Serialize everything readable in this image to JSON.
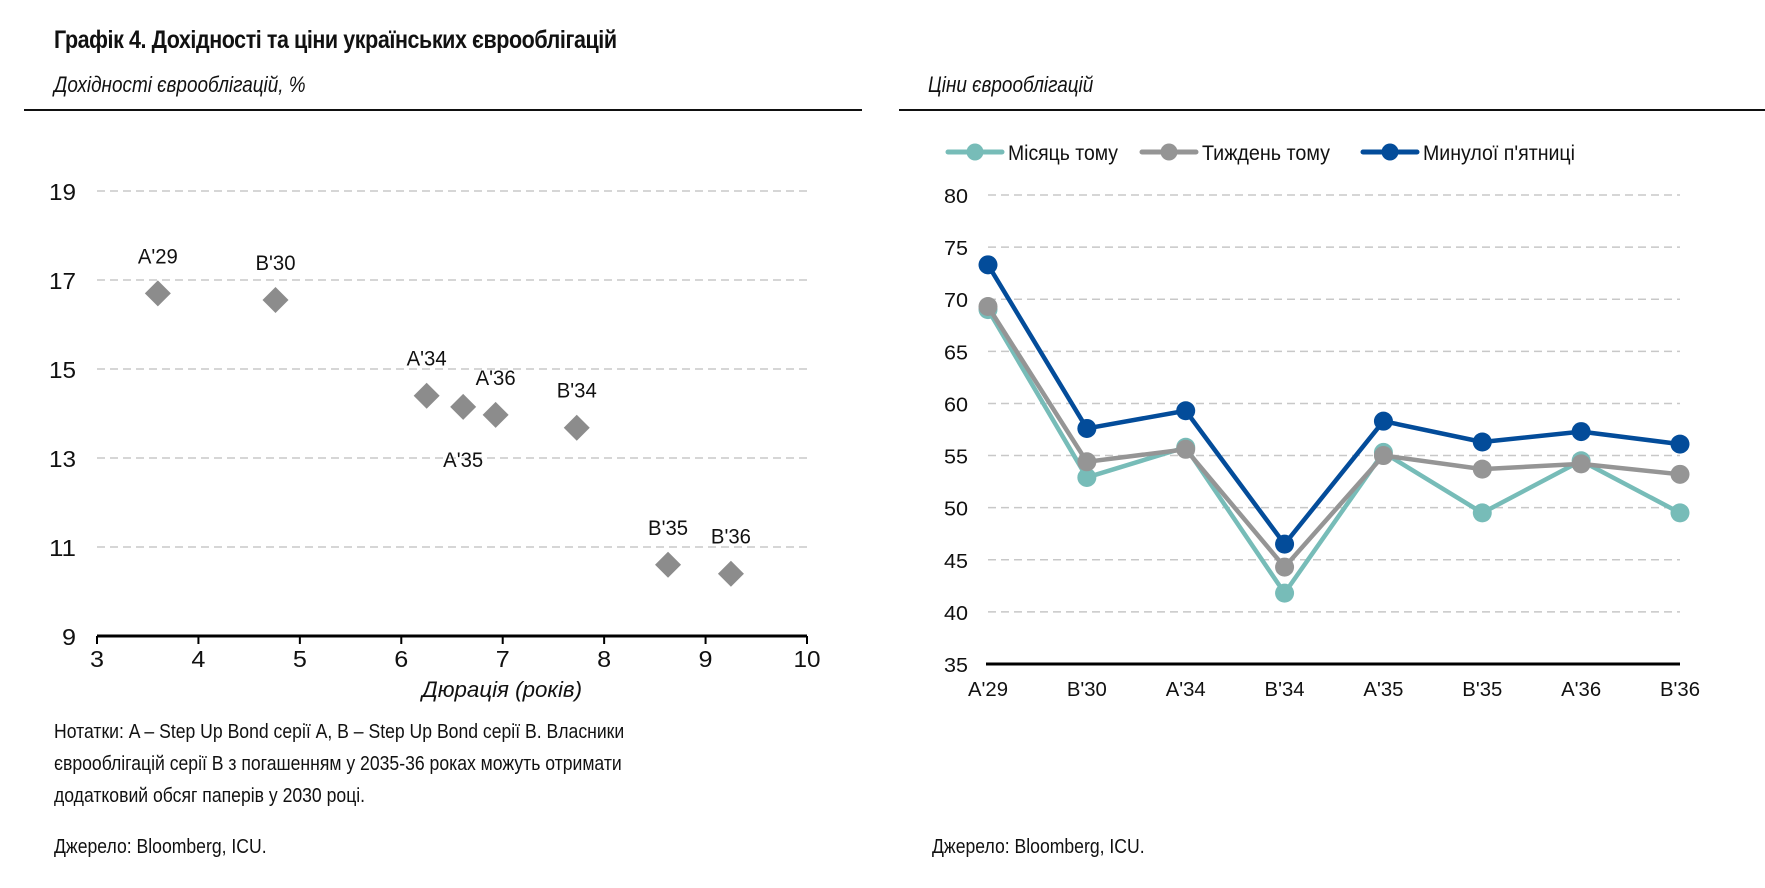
{
  "page": {
    "title": "Графік 4. Дохідності та ціни українських єврооблігацій",
    "left_subtitle": "Дохідності єврооблігацій, %",
    "right_subtitle": "Ціни єврооблігацій",
    "notes_lines": [
      "Нотатки: A – Step Up Bond серії A, B – Step Up Bond серії B. Власники",
      "єврооблігацій серії B з погашенням у 2035-36 роках можуть отримати",
      "додатковий обсяг паперів у 2030 році."
    ],
    "left_source": "Джерело: Bloomberg, ICU.",
    "right_source": "Джерело: Bloomberg, ICU."
  },
  "chart_data": [
    {
      "type": "scatter",
      "title": "Дохідності єврооблігацій, %",
      "xlabel": "Дюрація (років)",
      "ylabel": "",
      "xlim": [
        3,
        10
      ],
      "ylim": [
        9,
        19
      ],
      "xticks": [
        3,
        4,
        5,
        6,
        7,
        8,
        9,
        10
      ],
      "yticks": [
        9,
        11,
        13,
        15,
        17,
        19
      ],
      "grid": "horizontal-dashed",
      "marker": "diamond",
      "marker_color": "#8c8c8c",
      "points": [
        {
          "label": "A'29",
          "x": 3.6,
          "y": 16.7,
          "label_pos": "above"
        },
        {
          "label": "B'30",
          "x": 4.76,
          "y": 16.55,
          "label_pos": "above"
        },
        {
          "label": "A'34",
          "x": 6.25,
          "y": 14.4,
          "label_pos": "above"
        },
        {
          "label": "A'35",
          "x": 6.61,
          "y": 14.15,
          "label_pos": "below"
        },
        {
          "label": "A'36",
          "x": 6.93,
          "y": 13.97,
          "label_pos": "above"
        },
        {
          "label": "B'34",
          "x": 7.73,
          "y": 13.68,
          "label_pos": "above"
        },
        {
          "label": "B'35",
          "x": 8.63,
          "y": 10.6,
          "label_pos": "above"
        },
        {
          "label": "B'36",
          "x": 9.25,
          "y": 10.4,
          "label_pos": "above"
        }
      ]
    },
    {
      "type": "line",
      "title": "Ціни єврооблігацій",
      "xlabel": "",
      "ylabel": "",
      "ylim": [
        35,
        80
      ],
      "yticks": [
        35,
        40,
        45,
        50,
        55,
        60,
        65,
        70,
        75,
        80
      ],
      "grid": "horizontal-dashed",
      "legend": "top",
      "categories": [
        "A'29",
        "B'30",
        "A'34",
        "B'34",
        "A'35",
        "B'35",
        "A'36",
        "B'36"
      ],
      "series": [
        {
          "name": "Місяць тому",
          "color": "#77bcb8",
          "values": [
            69.0,
            52.9,
            55.8,
            41.8,
            55.3,
            49.5,
            54.5,
            49.5
          ]
        },
        {
          "name": "Тиждень тому",
          "color": "#959595",
          "values": [
            69.3,
            54.4,
            55.6,
            44.3,
            55.0,
            53.7,
            54.2,
            53.2
          ]
        },
        {
          "name": "Минулої п'ятниці",
          "color": "#034c9a",
          "values": [
            73.3,
            57.6,
            59.3,
            46.5,
            58.3,
            56.3,
            57.3,
            56.1
          ]
        }
      ]
    }
  ]
}
